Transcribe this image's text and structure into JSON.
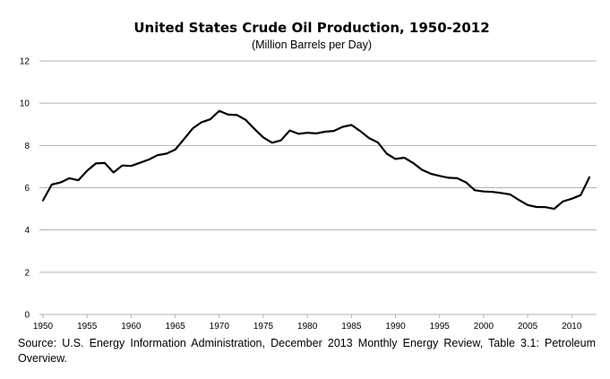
{
  "chart_data": {
    "type": "line",
    "title": "United States Crude Oil Production, 1950-2012",
    "subtitle": "(Million Barrels per Day)",
    "xlabel": "",
    "ylabel": "",
    "xlim": [
      1950,
      2012
    ],
    "ylim": [
      0,
      12
    ],
    "grid": "horizontal",
    "legend": "none",
    "line_color": "#000000",
    "grid_color": "#b3b3b3",
    "x_ticks": [
      "1950",
      "1955",
      "1960",
      "1965",
      "1970",
      "1975",
      "1980",
      "1985",
      "1990",
      "1995",
      "2000",
      "2005",
      "2010"
    ],
    "y_ticks": [
      "0",
      "2",
      "4",
      "6",
      "8",
      "10",
      "12"
    ],
    "series": [
      {
        "x": [
          1950,
          1951,
          1952,
          1953,
          1954,
          1955,
          1956,
          1957,
          1958,
          1959,
          1960,
          1961,
          1962,
          1963,
          1964,
          1965,
          1966,
          1967,
          1968,
          1969,
          1970,
          1971,
          1972,
          1973,
          1974,
          1975,
          1976,
          1977,
          1978,
          1979,
          1980,
          1981,
          1982,
          1983,
          1984,
          1985,
          1986,
          1987,
          1988,
          1989,
          1990,
          1991,
          1992,
          1993,
          1994,
          1995,
          1996,
          1997,
          1998,
          1999,
          2000,
          2001,
          2002,
          2003,
          2004,
          2005,
          2006,
          2007,
          2008,
          2009,
          2010,
          2011,
          2012
        ],
        "values": [
          5.4,
          6.15,
          6.25,
          6.45,
          6.35,
          6.8,
          7.15,
          7.17,
          6.72,
          7.05,
          7.03,
          7.18,
          7.33,
          7.54,
          7.61,
          7.8,
          8.3,
          8.81,
          9.1,
          9.24,
          9.64,
          9.46,
          9.44,
          9.21,
          8.78,
          8.38,
          8.13,
          8.24,
          8.71,
          8.55,
          8.6,
          8.57,
          8.65,
          8.69,
          8.88,
          8.97,
          8.68,
          8.35,
          8.14,
          7.61,
          7.36,
          7.42,
          7.17,
          6.85,
          6.66,
          6.56,
          6.47,
          6.45,
          6.25,
          5.88,
          5.82,
          5.8,
          5.75,
          5.68,
          5.42,
          5.18,
          5.09,
          5.08,
          5.0,
          5.35,
          5.48,
          5.65,
          6.49
        ]
      }
    ]
  },
  "source_note": "Source: U.S. Energy Information Administration, December 2013 Monthly Energy Review, Table 3.1: Petroleum Overview."
}
